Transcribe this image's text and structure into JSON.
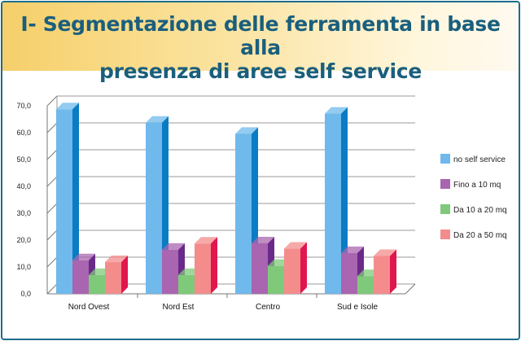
{
  "title_line1": "I- Segmentazione delle ferramenta in base alla",
  "title_line2": "presenza di aree self service",
  "chart_data": {
    "type": "bar",
    "title": "I- Segmentazione delle ferramenta in base alla presenza di aree self service",
    "categories": [
      "Nord Ovest",
      "Nord Est",
      "Centro",
      "Sud e Isole"
    ],
    "series": [
      {
        "name": "no self service",
        "values": [
          68.7,
          63.7,
          59.6,
          67.1
        ],
        "color": "#6fb9ec",
        "side": "#0a7cc4"
      },
      {
        "name": "Fino a 10 mq",
        "values": [
          12.5,
          16.4,
          18.8,
          15.2
        ],
        "color": "#a965b0",
        "side": "#6a2a8a"
      },
      {
        "name": "Da 10 a 20 mq",
        "values": [
          7.0,
          7.0,
          10.4,
          6.6
        ],
        "color": "#7fc97a",
        "side": "#a7dca0"
      },
      {
        "name": "Da 20 a 50 mq",
        "values": [
          11.8,
          18.7,
          16.8,
          14.1
        ],
        "color": "#f48c8c",
        "side": "#e0164e"
      }
    ],
    "yticks": [
      "0,0",
      "10,0",
      "20,0",
      "30,0",
      "40,0",
      "50,0",
      "60,0",
      "70,0"
    ],
    "ylim": [
      0,
      70
    ],
    "xlabel": "",
    "ylabel": "",
    "grid": true,
    "legend": "right"
  }
}
